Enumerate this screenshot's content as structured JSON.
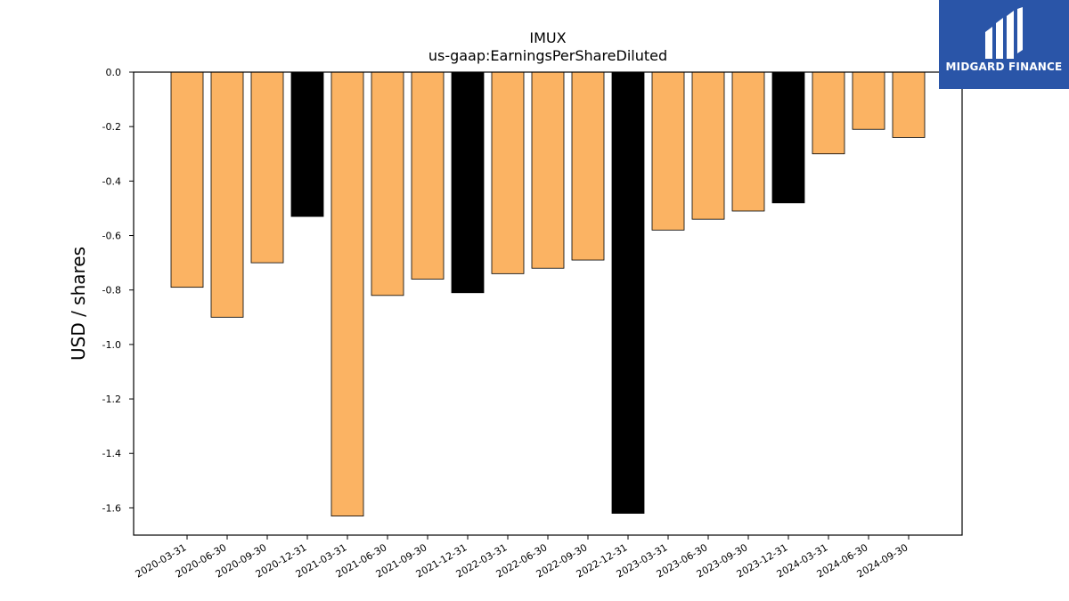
{
  "brand": {
    "name": "MIDGARD FINANCE",
    "color": "#2a55a8"
  },
  "chart_data": {
    "type": "bar",
    "title": "IMUX",
    "subtitle": "us-gaap:EarningsPerShareDiluted",
    "xlabel": "",
    "ylabel": "USD / shares",
    "ylim": [
      -1.7,
      0.0
    ],
    "yticks": [
      0.0,
      -0.2,
      -0.4,
      -0.6,
      -0.8,
      -1.0,
      -1.2,
      -1.4,
      -1.6
    ],
    "grid": false,
    "colors": {
      "quarter": "#fbb363",
      "annual": "#000000"
    },
    "categories": [
      "2020-03-31",
      "2020-06-30",
      "2020-09-30",
      "2020-12-31",
      "2021-03-31",
      "2021-06-30",
      "2021-09-30",
      "2021-12-31",
      "2022-03-31",
      "2022-06-30",
      "2022-09-30",
      "2022-12-31",
      "2023-03-31",
      "2023-06-30",
      "2023-09-30",
      "2023-12-31",
      "2024-03-31",
      "2024-06-30",
      "2024-09-30"
    ],
    "values": [
      -0.79,
      -0.9,
      -0.7,
      -0.53,
      -1.63,
      -0.82,
      -0.76,
      -0.81,
      -0.74,
      -0.72,
      -0.69,
      -1.62,
      -0.58,
      -0.54,
      -0.51,
      -0.48,
      -0.3,
      -0.21,
      -0.24
    ],
    "bar_colors": [
      "quarter",
      "quarter",
      "quarter",
      "annual",
      "quarter",
      "quarter",
      "quarter",
      "annual",
      "quarter",
      "quarter",
      "quarter",
      "annual",
      "quarter",
      "quarter",
      "quarter",
      "annual",
      "quarter",
      "quarter",
      "quarter"
    ]
  }
}
